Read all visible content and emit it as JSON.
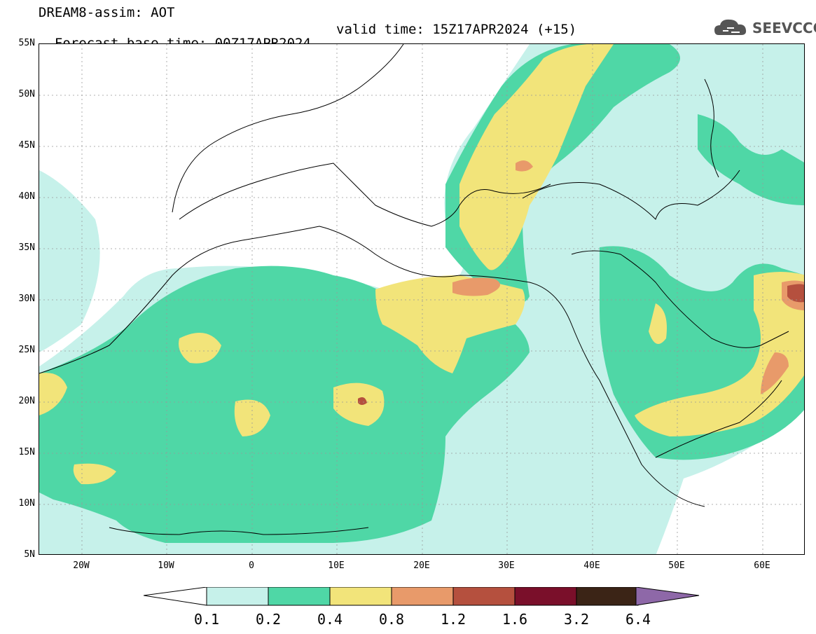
{
  "header": {
    "line1": "DREAM8-assim: AOT",
    "line2_base": "Forecast base time: 00Z17APR2024",
    "line2_valid": "valid time: 15Z17APR2024 (+15)",
    "logo_text": "SEEVCCC"
  },
  "axes": {
    "y_ticks": [
      "55N",
      "50N",
      "45N",
      "40N",
      "35N",
      "30N",
      "25N",
      "20N",
      "15N",
      "10N",
      "5N"
    ],
    "x_ticks": [
      "20W",
      "10W",
      "0",
      "10E",
      "20E",
      "30E",
      "40E",
      "50E",
      "60E"
    ]
  },
  "colorbar": {
    "labels": [
      "0.1",
      "0.2",
      "0.4",
      "0.8",
      "1.2",
      "1.6",
      "3.2",
      "6.4"
    ],
    "colors": [
      "#c6f1ea",
      "#4fd7a6",
      "#f2e47a",
      "#e89a6a",
      "#b5503e",
      "#7a0f2a",
      "#3b2416",
      "#8e68a8"
    ]
  },
  "chart_data": {
    "type": "heatmap",
    "title": "DREAM8-assim: AOT",
    "variable": "AOT",
    "forecast_base_time": "00Z17APR2024",
    "valid_time": "15Z17APR2024 (+15)",
    "lon_range": [
      -25,
      65
    ],
    "lat_range": [
      5,
      55
    ],
    "levels": [
      0.1,
      0.2,
      0.4,
      0.8,
      1.2,
      1.6,
      3.2,
      6.4
    ],
    "grid": true
  }
}
